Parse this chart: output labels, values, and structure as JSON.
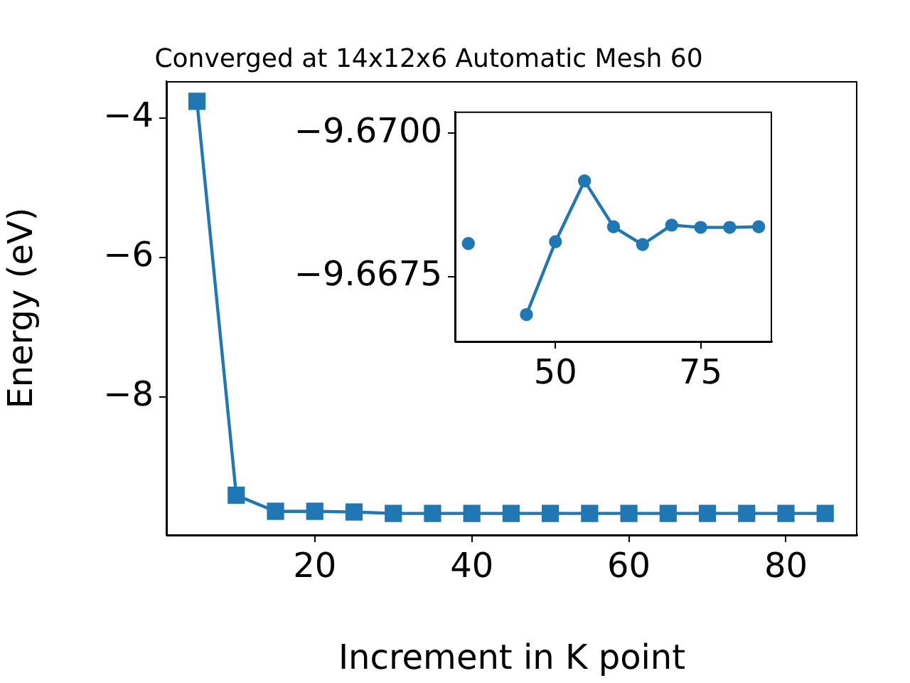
{
  "chart_data": [
    {
      "type": "line",
      "title": "Converged at 14x12x6 Automatic Mesh 60",
      "xlabel": "Increment in K point",
      "ylabel": "Energy (eV)",
      "x": [
        5,
        10,
        15,
        20,
        25,
        30,
        35,
        40,
        45,
        50,
        55,
        60,
        65,
        70,
        75,
        80,
        85
      ],
      "series": [
        {
          "color": "#1f77b4",
          "values": [
            -3.76,
            -9.41,
            -9.64,
            -9.64,
            -9.65,
            -9.67,
            -9.67,
            -9.67,
            -9.67,
            -9.67,
            -9.67,
            -9.67,
            -9.67,
            -9.67,
            -9.67,
            -9.67,
            -9.67
          ]
        }
      ],
      "xlim": [
        1.1,
        89.1
      ],
      "xticks": [
        20,
        40,
        60,
        80
      ],
      "ylim": [
        -9.98,
        -3.47
      ],
      "yticks": [
        {
          "value": -4,
          "label": "−4"
        },
        {
          "value": -6,
          "label": "−6"
        },
        {
          "value": -8,
          "label": "−8"
        }
      ],
      "grid": false,
      "legend": false,
      "marker": "square",
      "line_style": "solid"
    },
    {
      "type": "line",
      "x": [
        35,
        40,
        45,
        50,
        55,
        60,
        65,
        70,
        75,
        80,
        85
      ],
      "series": [
        {
          "color": "#1f77b4",
          "values": [
            -9.66808,
            null,
            -9.66684,
            -9.66811,
            -9.66917,
            -9.66837,
            -9.66806,
            -9.6684,
            -9.66836,
            -9.66836,
            -9.66837
          ]
        }
      ],
      "xlim": [
        32.7,
        87.3
      ],
      "xticks": [
        50,
        75
      ],
      "ylim": [
        -9.66637,
        -9.67038
      ],
      "yticks": [
        {
          "value": -9.67,
          "label": "−9.6700"
        },
        {
          "value": -9.6675,
          "label": "−9.6675"
        }
      ],
      "grid": false,
      "legend": false,
      "marker": "circle",
      "line_style": "solid"
    }
  ]
}
